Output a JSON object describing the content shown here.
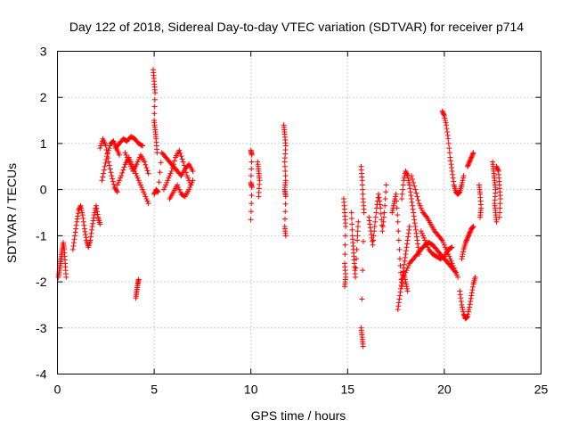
{
  "chart_data": {
    "type": "scatter",
    "title": "Day 122 of 2018, Sidereal Day-to-day VTEC variation (SDTVAR) for receiver p714",
    "xlabel": "GPS time / hours",
    "ylabel": "SDTVAR / TECUs",
    "xlim": [
      0,
      25
    ],
    "ylim": [
      -4,
      3
    ],
    "xticks": [
      0,
      5,
      10,
      15,
      20,
      25
    ],
    "yticks": [
      -4,
      -3,
      -2,
      -1,
      0,
      1,
      2,
      3
    ],
    "xtick_labels": [
      "0",
      "5",
      "10",
      "15",
      "20",
      "25"
    ],
    "ytick_labels": [
      "-4",
      "-3",
      "-2",
      "-1",
      "0",
      "1",
      "2",
      "3"
    ],
    "grid": true,
    "marker": "+",
    "marker_color": "#ff0000",
    "series": [
      {
        "name": "SDTVAR",
        "segments": [
          [
            [
              0.05,
              -1.9
            ],
            [
              0.1,
              -1.75
            ],
            [
              0.15,
              -1.6
            ],
            [
              0.2,
              -1.45
            ],
            [
              0.25,
              -1.3
            ],
            [
              0.3,
              -1.15
            ],
            [
              0.35,
              -1.3
            ],
            [
              0.4,
              -1.6
            ],
            [
              0.45,
              -1.9
            ]
          ],
          [
            [
              0.8,
              -1.3
            ],
            [
              0.9,
              -1.0
            ],
            [
              1.0,
              -0.7
            ],
            [
              1.1,
              -0.45
            ],
            [
              1.2,
              -0.35
            ],
            [
              1.3,
              -0.55
            ],
            [
              1.4,
              -0.85
            ],
            [
              1.5,
              -1.1
            ],
            [
              1.6,
              -1.25
            ],
            [
              1.7,
              -1.1
            ],
            [
              1.8,
              -0.8
            ],
            [
              1.9,
              -0.55
            ],
            [
              2.0,
              -0.35
            ],
            [
              2.1,
              -0.6
            ],
            [
              2.2,
              -0.75
            ]
          ],
          [
            [
              2.2,
              0.9
            ],
            [
              2.35,
              1.1
            ],
            [
              2.5,
              0.95
            ],
            [
              2.65,
              0.6
            ],
            [
              2.8,
              0.3
            ],
            [
              2.95,
              0.05
            ],
            [
              3.1,
              -0.05
            ]
          ],
          [
            [
              2.3,
              0.2
            ],
            [
              2.45,
              0.5
            ],
            [
              2.6,
              0.8
            ],
            [
              2.75,
              1.0
            ],
            [
              2.9,
              1.05
            ],
            [
              3.05,
              0.9
            ],
            [
              3.2,
              0.75
            ]
          ],
          [
            [
              3.0,
              0.9
            ],
            [
              3.2,
              1.0
            ],
            [
              3.4,
              1.1
            ],
            [
              3.6,
              1.05
            ],
            [
              3.8,
              1.15
            ],
            [
              4.0,
              1.1
            ],
            [
              4.2,
              1.0
            ],
            [
              4.4,
              0.95
            ]
          ],
          [
            [
              3.1,
              0.1
            ],
            [
              3.3,
              0.3
            ],
            [
              3.5,
              0.55
            ],
            [
              3.7,
              0.7
            ],
            [
              3.9,
              0.5
            ],
            [
              4.1,
              0.3
            ],
            [
              4.3,
              0.1
            ],
            [
              4.5,
              -0.1
            ],
            [
              4.7,
              -0.3
            ]
          ],
          [
            [
              3.5,
              0.8
            ],
            [
              3.7,
              0.6
            ],
            [
              3.9,
              0.4
            ],
            [
              4.1,
              0.55
            ],
            [
              4.3,
              0.75
            ],
            [
              4.5,
              0.6
            ],
            [
              4.7,
              0.35
            ]
          ],
          [
            [
              4.05,
              -2.35
            ],
            [
              4.1,
              -2.2
            ],
            [
              4.15,
              -2.05
            ],
            [
              4.2,
              -1.95
            ]
          ],
          [
            [
              4.95,
              2.6
            ],
            [
              5.0,
              2.35
            ],
            [
              5.05,
              2.1
            ],
            [
              5.0,
              1.5
            ],
            [
              5.05,
              1.3
            ],
            [
              5.1,
              1.1
            ],
            [
              5.15,
              0.8
            ]
          ],
          [
            [
              5.0,
              -0.1
            ],
            [
              5.1,
              0.0
            ],
            [
              5.2,
              -0.05
            ],
            [
              5.4,
              0.8
            ],
            [
              5.6,
              0.7
            ],
            [
              5.8,
              0.6
            ],
            [
              6.0,
              0.5
            ],
            [
              6.2,
              0.4
            ],
            [
              6.4,
              0.3
            ],
            [
              6.6,
              0.45
            ],
            [
              6.8,
              0.55
            ],
            [
              7.0,
              0.4
            ]
          ],
          [
            [
              5.5,
              0.0
            ],
            [
              5.7,
              0.2
            ],
            [
              5.9,
              0.4
            ],
            [
              6.1,
              0.7
            ],
            [
              6.3,
              0.85
            ],
            [
              6.5,
              0.6
            ],
            [
              6.7,
              0.3
            ],
            [
              6.9,
              0.1
            ]
          ],
          [
            [
              5.8,
              -0.2
            ],
            [
              6.0,
              -0.05
            ],
            [
              6.2,
              0.1
            ],
            [
              6.4,
              -0.1
            ],
            [
              6.6,
              -0.15
            ],
            [
              6.8,
              0.0
            ],
            [
              7.0,
              0.2
            ]
          ],
          [
            [
              10.0,
              0.85
            ],
            [
              10.05,
              0.75
            ],
            [
              10.0,
              0.15
            ],
            [
              10.05,
              0.05
            ],
            [
              10.0,
              -0.65
            ]
          ],
          [
            [
              10.35,
              0.6
            ],
            [
              10.4,
              0.4
            ],
            [
              10.45,
              0.2
            ],
            [
              10.4,
              -0.15
            ]
          ],
          [
            [
              11.7,
              1.4
            ],
            [
              11.75,
              1.2
            ],
            [
              11.8,
              0.95
            ],
            [
              11.75,
              0.6
            ],
            [
              11.8,
              0.2
            ],
            [
              11.75,
              0.0
            ],
            [
              11.8,
              -0.15
            ],
            [
              11.75,
              -0.8
            ],
            [
              11.8,
              -1.0
            ]
          ],
          [
            [
              14.8,
              -0.2
            ],
            [
              14.85,
              -0.5
            ],
            [
              14.9,
              -0.8
            ],
            [
              14.85,
              -1.6
            ],
            [
              14.9,
              -1.9
            ],
            [
              14.85,
              -2.1
            ]
          ],
          [
            [
              15.2,
              -0.5
            ],
            [
              15.25,
              -1.0
            ],
            [
              15.3,
              -1.3
            ],
            [
              15.35,
              -1.6
            ],
            [
              15.4,
              -1.9
            ],
            [
              15.5,
              -1.1
            ],
            [
              15.55,
              -0.7
            ]
          ],
          [
            [
              15.7,
              0.5
            ],
            [
              15.75,
              0.2
            ],
            [
              15.8,
              -0.2
            ],
            [
              15.85,
              -0.5
            ],
            [
              15.7,
              -3.0
            ],
            [
              15.75,
              -3.2
            ],
            [
              15.8,
              -3.4
            ]
          ],
          [
            [
              16.1,
              -0.6
            ],
            [
              16.2,
              -0.9
            ],
            [
              16.3,
              -1.2
            ],
            [
              16.4,
              -0.8
            ],
            [
              16.5,
              -0.4
            ],
            [
              16.6,
              -0.1
            ],
            [
              16.7,
              -0.4
            ],
            [
              16.8,
              -0.9
            ],
            [
              16.9,
              -0.5
            ],
            [
              17.0,
              0.1
            ]
          ],
          [
            [
              17.3,
              -0.5
            ],
            [
              17.4,
              -0.3
            ],
            [
              17.5,
              -0.1
            ],
            [
              17.6,
              -0.7
            ],
            [
              17.7,
              -1.5
            ],
            [
              17.8,
              -2.1
            ],
            [
              17.9,
              -1.8
            ],
            [
              18.0,
              -2.0
            ],
            [
              18.1,
              -2.2
            ]
          ],
          [
            [
              17.6,
              -2.6
            ],
            [
              17.7,
              -2.3
            ],
            [
              17.8,
              -2.0
            ],
            [
              17.9,
              -1.7
            ],
            [
              18.0,
              -1.4
            ],
            [
              18.1,
              -1.1
            ],
            [
              18.2,
              -0.8
            ]
          ],
          [
            [
              17.8,
              -0.2
            ],
            [
              17.9,
              0.2
            ],
            [
              18.0,
              0.4
            ],
            [
              18.1,
              0.3
            ],
            [
              18.2,
              0.1
            ],
            [
              18.3,
              -0.2
            ],
            [
              18.4,
              -0.5
            ],
            [
              18.5,
              -0.8
            ],
            [
              18.6,
              -1.1
            ],
            [
              18.7,
              -1.4
            ]
          ],
          [
            [
              18.0,
              -1.8
            ],
            [
              18.2,
              -1.6
            ],
            [
              18.4,
              -1.5
            ],
            [
              18.6,
              -1.4
            ],
            [
              18.8,
              -1.3
            ],
            [
              19.0,
              -1.2
            ],
            [
              19.2,
              -1.15
            ],
            [
              19.4,
              -1.2
            ],
            [
              19.6,
              -1.3
            ],
            [
              19.8,
              -1.4
            ],
            [
              20.0,
              -1.5
            ],
            [
              20.2,
              -1.6
            ],
            [
              20.4,
              -1.7
            ],
            [
              20.6,
              -1.8
            ]
          ],
          [
            [
              18.3,
              0.3
            ],
            [
              18.5,
              0.0
            ],
            [
              18.7,
              -0.3
            ],
            [
              18.9,
              -0.5
            ],
            [
              19.1,
              -0.6
            ],
            [
              19.3,
              -0.75
            ],
            [
              19.5,
              -0.9
            ],
            [
              19.7,
              -1.0
            ],
            [
              19.9,
              -1.1
            ],
            [
              20.1,
              -1.3
            ],
            [
              20.3,
              -1.5
            ],
            [
              20.5,
              -1.7
            ],
            [
              20.7,
              -1.9
            ]
          ],
          [
            [
              18.8,
              -0.9
            ],
            [
              19.0,
              -1.1
            ],
            [
              19.2,
              -1.3
            ],
            [
              19.4,
              -1.4
            ],
            [
              19.6,
              -1.45
            ],
            [
              19.8,
              -1.5
            ],
            [
              20.0,
              -1.45
            ],
            [
              20.2,
              -1.3
            ],
            [
              20.4,
              -1.25
            ]
          ],
          [
            [
              19.9,
              1.7
            ],
            [
              20.0,
              1.6
            ],
            [
              20.1,
              1.4
            ],
            [
              20.2,
              1.1
            ],
            [
              20.3,
              0.7
            ],
            [
              20.4,
              0.4
            ],
            [
              20.5,
              0.1
            ],
            [
              20.6,
              -0.05
            ],
            [
              20.7,
              -0.1
            ],
            [
              20.8,
              -0.05
            ],
            [
              20.9,
              0.1
            ],
            [
              21.0,
              0.3
            ]
          ],
          [
            [
              20.9,
              -1.5
            ],
            [
              21.0,
              -1.3
            ],
            [
              21.1,
              -1.15
            ],
            [
              21.2,
              -1.05
            ],
            [
              21.3,
              -0.95
            ],
            [
              21.4,
              -0.85
            ],
            [
              21.5,
              -0.8
            ]
          ],
          [
            [
              21.2,
              0.5
            ],
            [
              21.3,
              0.6
            ],
            [
              21.4,
              0.7
            ],
            [
              21.5,
              0.8
            ]
          ],
          [
            [
              20.8,
              -2.2
            ],
            [
              20.9,
              -2.5
            ],
            [
              21.0,
              -2.7
            ],
            [
              21.1,
              -2.8
            ],
            [
              21.2,
              -2.75
            ],
            [
              21.3,
              -2.55
            ],
            [
              21.4,
              -2.3
            ],
            [
              21.5,
              -2.05
            ],
            [
              21.6,
              -1.9
            ]
          ],
          [
            [
              21.8,
              0.1
            ],
            [
              21.85,
              -0.1
            ],
            [
              21.9,
              -0.4
            ],
            [
              21.85,
              -0.6
            ]
          ],
          [
            [
              22.5,
              0.6
            ],
            [
              22.55,
              0.4
            ],
            [
              22.6,
              0.2
            ],
            [
              22.65,
              0.0
            ],
            [
              22.6,
              -0.3
            ],
            [
              22.65,
              -0.5
            ],
            [
              22.7,
              -0.7
            ]
          ],
          [
            [
              22.7,
              0.5
            ],
            [
              22.8,
              0.4
            ],
            [
              22.85,
              0.1
            ],
            [
              22.9,
              -0.2
            ],
            [
              22.85,
              -0.6
            ]
          ]
        ]
      }
    ]
  }
}
